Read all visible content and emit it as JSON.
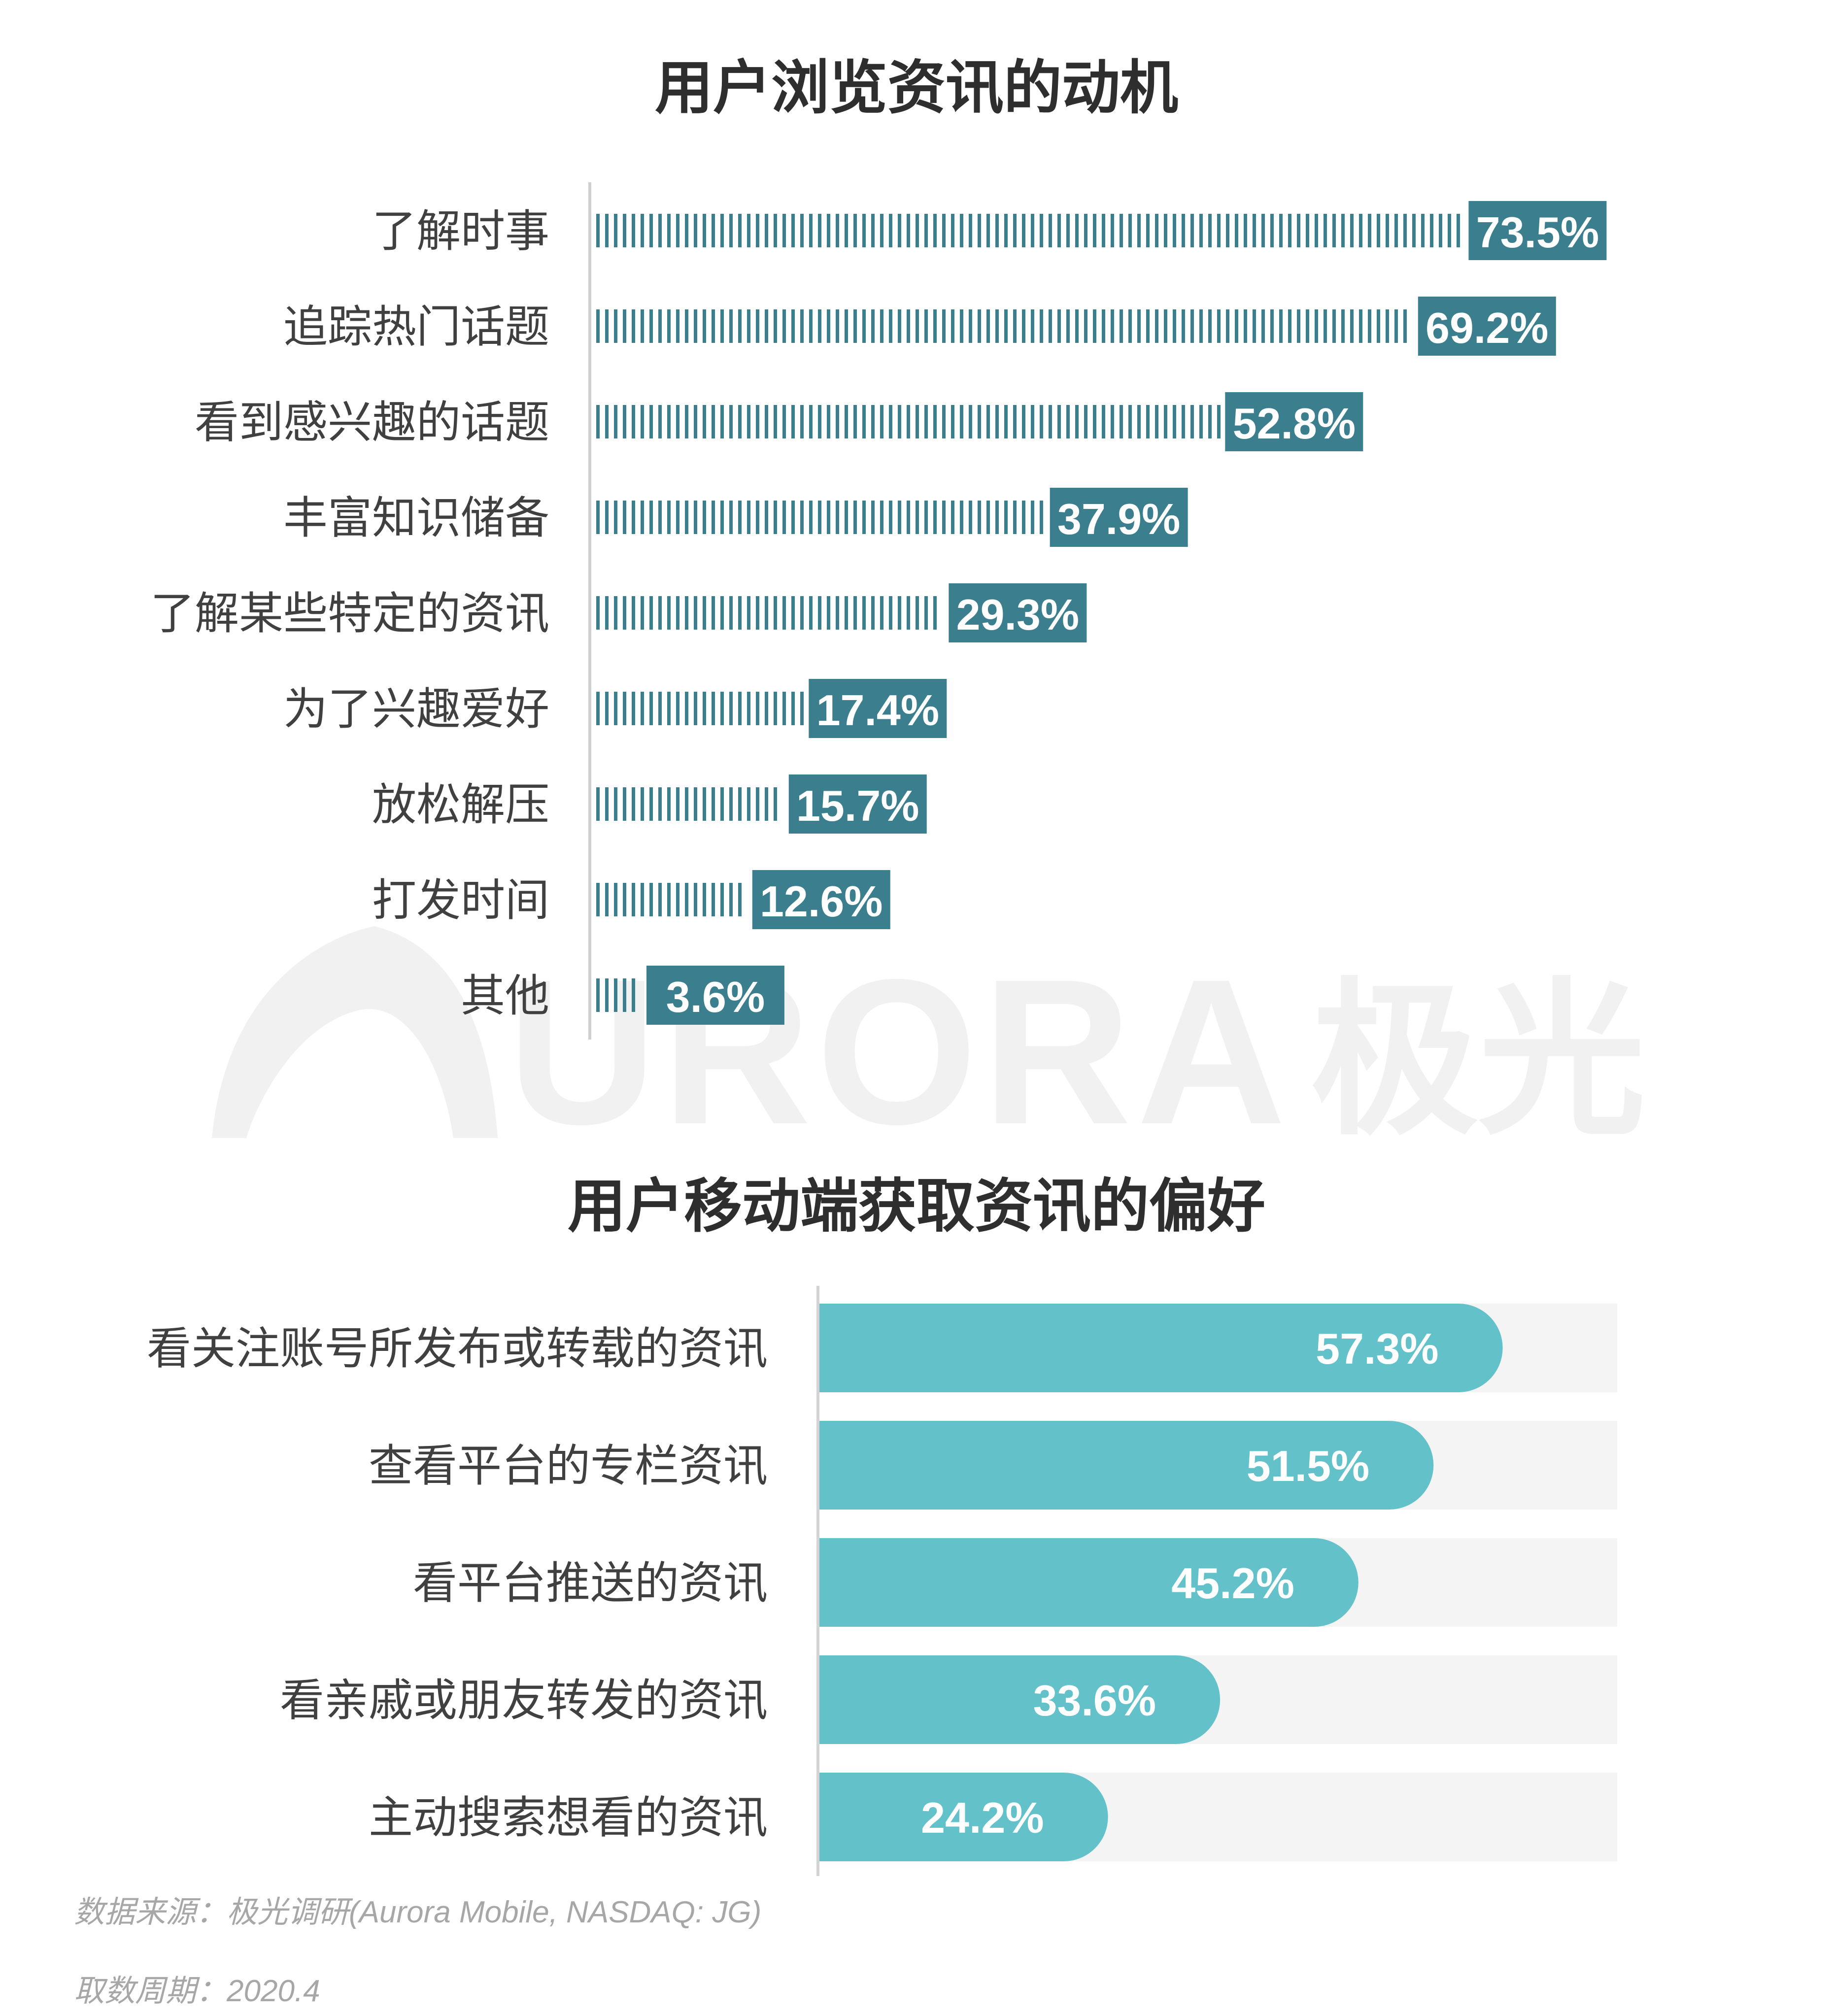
{
  "chart_data": [
    {
      "type": "bar",
      "orientation": "horizontal",
      "title": "用户浏览资讯的动机",
      "categories": [
        "了解时事",
        "追踪热门话题",
        "看到感兴趣的话题",
        "丰富知识储备",
        "了解某些特定的资讯",
        "为了兴趣爱好",
        "放松解压",
        "打发时间",
        "其他"
      ],
      "values": [
        73.5,
        69.2,
        52.8,
        37.9,
        29.3,
        17.4,
        15.7,
        12.6,
        3.6
      ],
      "value_labels": [
        "73.5%",
        "69.2%",
        "52.8%",
        "37.9%",
        "29.3%",
        "17.4%",
        "15.7%",
        "12.6%",
        "3.6%"
      ],
      "color": "#3b7f8e",
      "xlim": [
        0,
        100
      ]
    },
    {
      "type": "bar",
      "orientation": "horizontal",
      "title": "用户移动端获取资讯的偏好",
      "categories": [
        "看关注账号所发布或转载的资讯",
        "查看平台的专栏资讯",
        "看平台推送的资讯",
        "看亲戚或朋友转发的资讯",
        "主动搜索想看的资讯"
      ],
      "values": [
        57.3,
        51.5,
        45.2,
        33.6,
        24.2
      ],
      "value_labels": [
        "57.3%",
        "51.5%",
        "45.2%",
        "33.6%",
        "24.2%"
      ],
      "color": "#62c1c9",
      "track_color": "#f4f4f4",
      "xlim": [
        0,
        100
      ]
    }
  ],
  "watermark": {
    "text": "URORA",
    "cn_text": "极光"
  },
  "footer": {
    "source": "数据来源：极光调研(Aurora Mobile, NASDAQ: JG)",
    "period": "取数周期：2020.4"
  }
}
